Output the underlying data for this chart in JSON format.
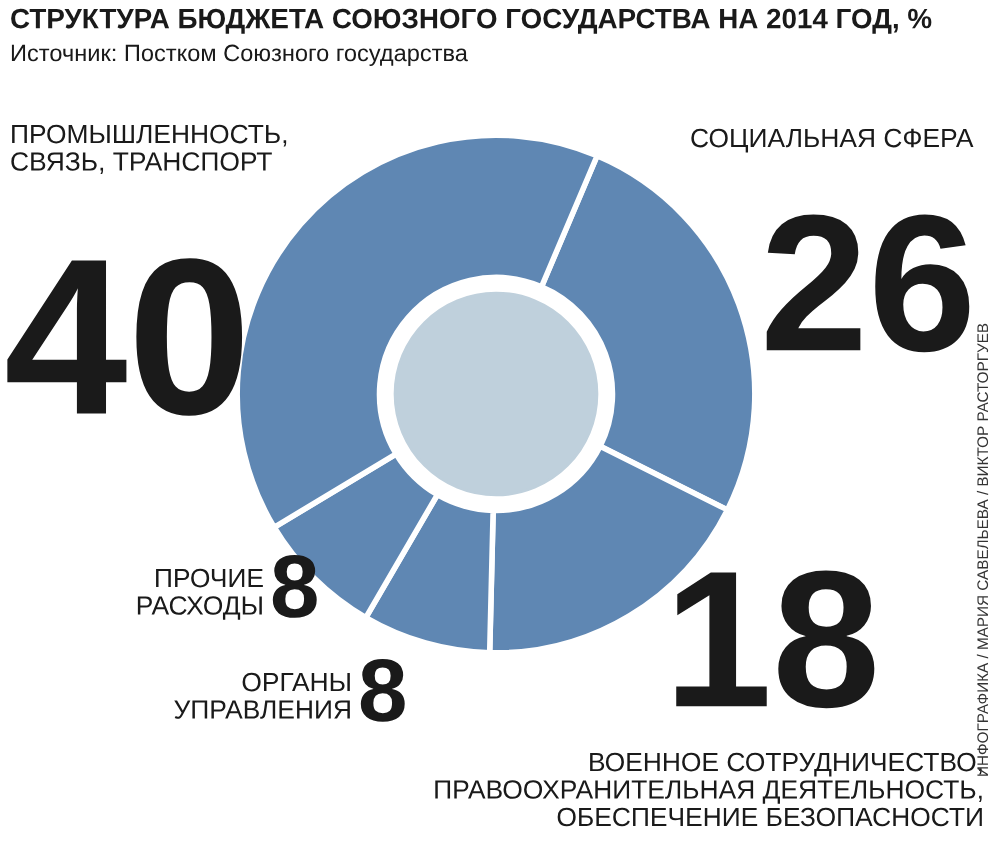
{
  "chart_data": {
    "type": "donut",
    "title": "СТРУКТУРА БЮДЖЕТА СОЮЗНОГО ГОСУДАРСТВА НА 2014 ГОД, %",
    "subtitle": "Источник: Постком Союзного государства",
    "categories": [
      "СОЦИАЛЬНАЯ СФЕРА",
      "ВОЕННОЕ СОТРУДНИЧЕСТВО,\nПРАВООХРАНИТЕЛЬНАЯ ДЕЯТЕЛЬНОСТЬ,\nОБЕСПЕЧЕНИЕ БЕЗОПАСНОСТИ",
      "ОРГАНЫ\nУПРАВЛЕНИЯ",
      "ПРОЧИЕ\nРАСХОДЫ",
      "ПРОМЫШЛЕННОСТЬ,\nСВЯЗЬ, ТРАНСПОРТ"
    ],
    "values": [
      26,
      18,
      8,
      8,
      40
    ],
    "colors": [
      "#5f87b3",
      "#5f87b3",
      "#5f87b3",
      "#5f87b3",
      "#5f87b3"
    ],
    "data_labels": true,
    "annotations": [
      "ИНФОГРАФИКА / МАРИЯ САВЕЛЬЕВА / ВИКТОР РАСТОРГУЕВ"
    ]
  }
}
